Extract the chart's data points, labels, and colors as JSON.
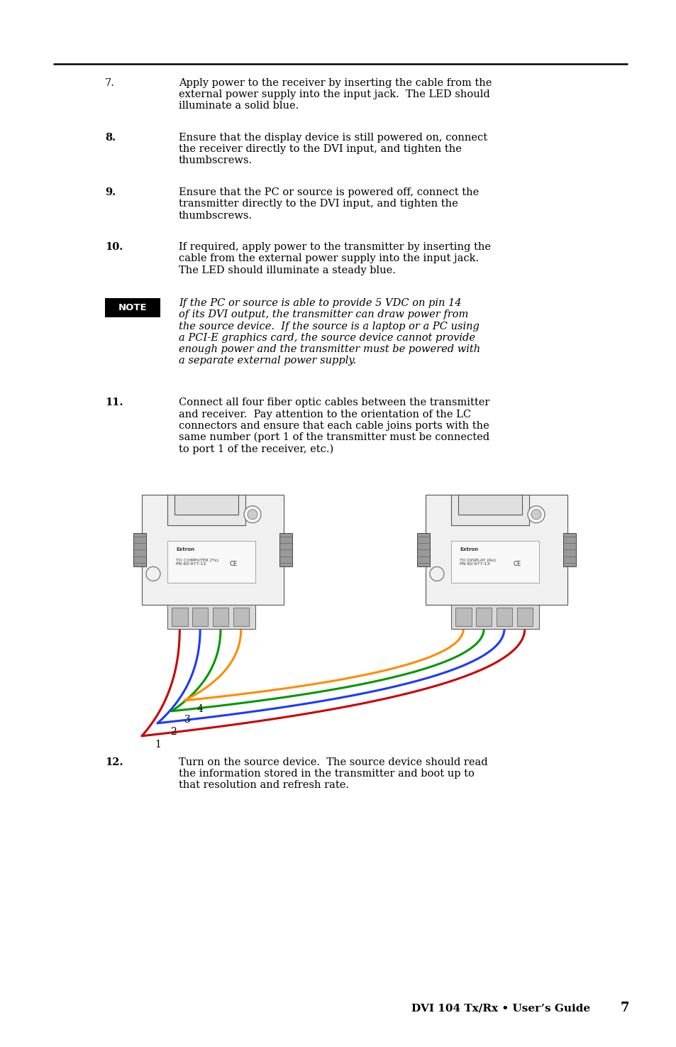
{
  "bg_color": "#ffffff",
  "text_color": "#000000",
  "page_width": 9.54,
  "page_height": 14.75,
  "footer_text": "DVI 104 Tx/Rx • User’s Guide",
  "footer_page": "7",
  "items": [
    {
      "num": "7.",
      "text": "Apply power to the receiver by inserting the cable from the\nexternal power supply into the input jack.  The LED should\nilluminate a solid blue."
    },
    {
      "num": "8.",
      "text": "Ensure that the display device is still powered on, connect\nthe receiver directly to the DVI input, and tighten the\nthumbscrews."
    },
    {
      "num": "9.",
      "text": "Ensure that the PC or source is powered off, connect the\ntransmitter directly to the DVI input, and tighten the\nthumbscrews."
    },
    {
      "num": "10.",
      "text": "If required, apply power to the transmitter by inserting the\ncable from the external power supply into the input jack.\nThe LED should illuminate a steady blue."
    },
    {
      "num": "11.",
      "text": "Connect all four fiber optic cables between the transmitter\nand receiver.  Pay attention to the orientation of the LC\nconnectors and ensure that each cable joins ports with the\nsame number (port 1 of the transmitter must be connected\nto port 1 of the receiver, etc.)"
    },
    {
      "num": "12.",
      "text": "Turn on the source device.  The source device should read\nthe information stored in the transmitter and boot up to\nthat resolution and refresh rate."
    }
  ],
  "note_text": "If the PC or source is able to provide 5 VDC on pin 14\nof its DVI output, the transmitter can draw power from\nthe source device.  If the source is a laptop or a PC using\na PCI-E graphics card, the source device cannot provide\nenough power and the transmitter must be powered with\na separate external power supply.",
  "cable_colors": [
    "#cc0000",
    "#1a3aff",
    "#009900",
    "#ff8c00"
  ],
  "cable_labels": [
    "1",
    "2",
    "3",
    "4"
  ],
  "left_device_label": "TO COMPUTER (Tx)\nPN 60-977-12",
  "right_device_label": "TO DISPLAY (Rx)\nPN 60-977-13"
}
